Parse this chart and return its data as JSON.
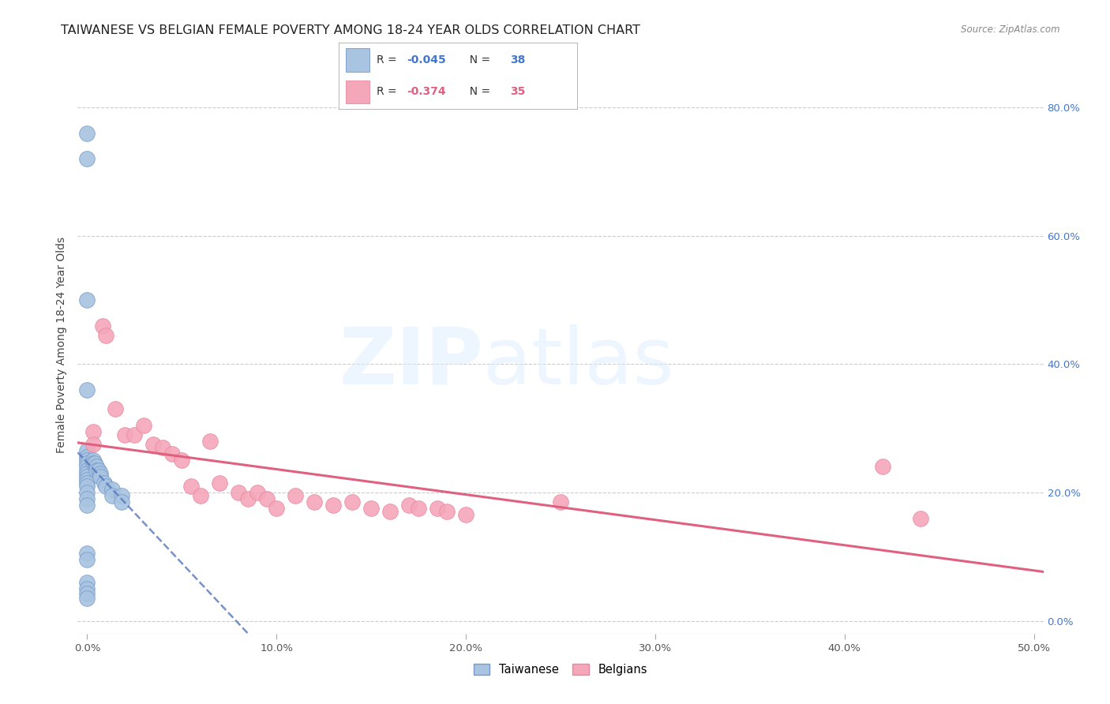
{
  "title": "TAIWANESE VS BELGIAN FEMALE POVERTY AMONG 18-24 YEAR OLDS CORRELATION CHART",
  "source": "Source: ZipAtlas.com",
  "ylabel": "Female Poverty Among 18-24 Year Olds",
  "xlabel_ticks": [
    "0.0%",
    "10.0%",
    "20.0%",
    "30.0%",
    "40.0%",
    "50.0%"
  ],
  "xlabel_vals": [
    0.0,
    0.1,
    0.2,
    0.3,
    0.4,
    0.5
  ],
  "ylabel_ticks": [
    "0.0%",
    "20.0%",
    "40.0%",
    "60.0%",
    "80.0%"
  ],
  "ylabel_vals": [
    0.0,
    0.2,
    0.4,
    0.6,
    0.8
  ],
  "xlim": [
    -0.005,
    0.505
  ],
  "ylim": [
    -0.02,
    0.88
  ],
  "taiwanese_x": [
    0.0,
    0.0,
    0.0,
    0.0,
    0.0,
    0.0,
    0.0,
    0.0,
    0.0,
    0.0,
    0.0,
    0.0,
    0.0,
    0.0,
    0.0,
    0.0,
    0.0,
    0.0,
    0.0,
    0.0,
    0.003,
    0.003,
    0.004,
    0.005,
    0.005,
    0.006,
    0.007,
    0.007,
    0.009,
    0.01,
    0.013,
    0.013,
    0.018,
    0.018,
    0.0,
    0.0,
    0.0,
    0.0
  ],
  "taiwanese_y": [
    0.76,
    0.72,
    0.5,
    0.36,
    0.265,
    0.255,
    0.25,
    0.245,
    0.24,
    0.235,
    0.23,
    0.225,
    0.22,
    0.215,
    0.21,
    0.2,
    0.19,
    0.18,
    0.105,
    0.095,
    0.25,
    0.245,
    0.245,
    0.24,
    0.235,
    0.235,
    0.23,
    0.225,
    0.215,
    0.21,
    0.205,
    0.195,
    0.195,
    0.185,
    0.06,
    0.05,
    0.042,
    0.035
  ],
  "belgian_x": [
    0.003,
    0.003,
    0.008,
    0.01,
    0.015,
    0.02,
    0.025,
    0.03,
    0.035,
    0.04,
    0.045,
    0.05,
    0.055,
    0.06,
    0.065,
    0.07,
    0.08,
    0.085,
    0.09,
    0.095,
    0.1,
    0.11,
    0.12,
    0.13,
    0.14,
    0.15,
    0.16,
    0.17,
    0.175,
    0.185,
    0.19,
    0.2,
    0.25,
    0.42,
    0.44
  ],
  "belgian_y": [
    0.295,
    0.275,
    0.46,
    0.445,
    0.33,
    0.29,
    0.29,
    0.305,
    0.275,
    0.27,
    0.26,
    0.25,
    0.21,
    0.195,
    0.28,
    0.215,
    0.2,
    0.19,
    0.2,
    0.19,
    0.175,
    0.195,
    0.185,
    0.18,
    0.185,
    0.175,
    0.17,
    0.18,
    0.175,
    0.175,
    0.17,
    0.165,
    0.185,
    0.24,
    0.16
  ],
  "taiwanese_color": "#a8c4e0",
  "belgian_color": "#f4a7b9",
  "taiwanese_line_color": "#5577bb",
  "belgian_line_color": "#e06080",
  "taiwanese_edge_color": "#7799cc",
  "belgian_edge_color": "#e888a0",
  "taiwanese_R": -0.045,
  "taiwanese_N": 38,
  "belgian_R": -0.374,
  "belgian_N": 35,
  "watermark_zip": "ZIP",
  "watermark_atlas": "atlas",
  "legend_taiwanese_label": "Taiwanese",
  "legend_belgian_label": "Belgians",
  "background_color": "#ffffff",
  "grid_color": "#cccccc",
  "title_fontsize": 11.5,
  "axis_label_fontsize": 10,
  "tick_fontsize": 9.5,
  "right_tick_color": "#4477cc",
  "legend_text_color": "#4477cc",
  "r_value_color_tw": "#4477cc",
  "r_value_color_be": "#e06080"
}
